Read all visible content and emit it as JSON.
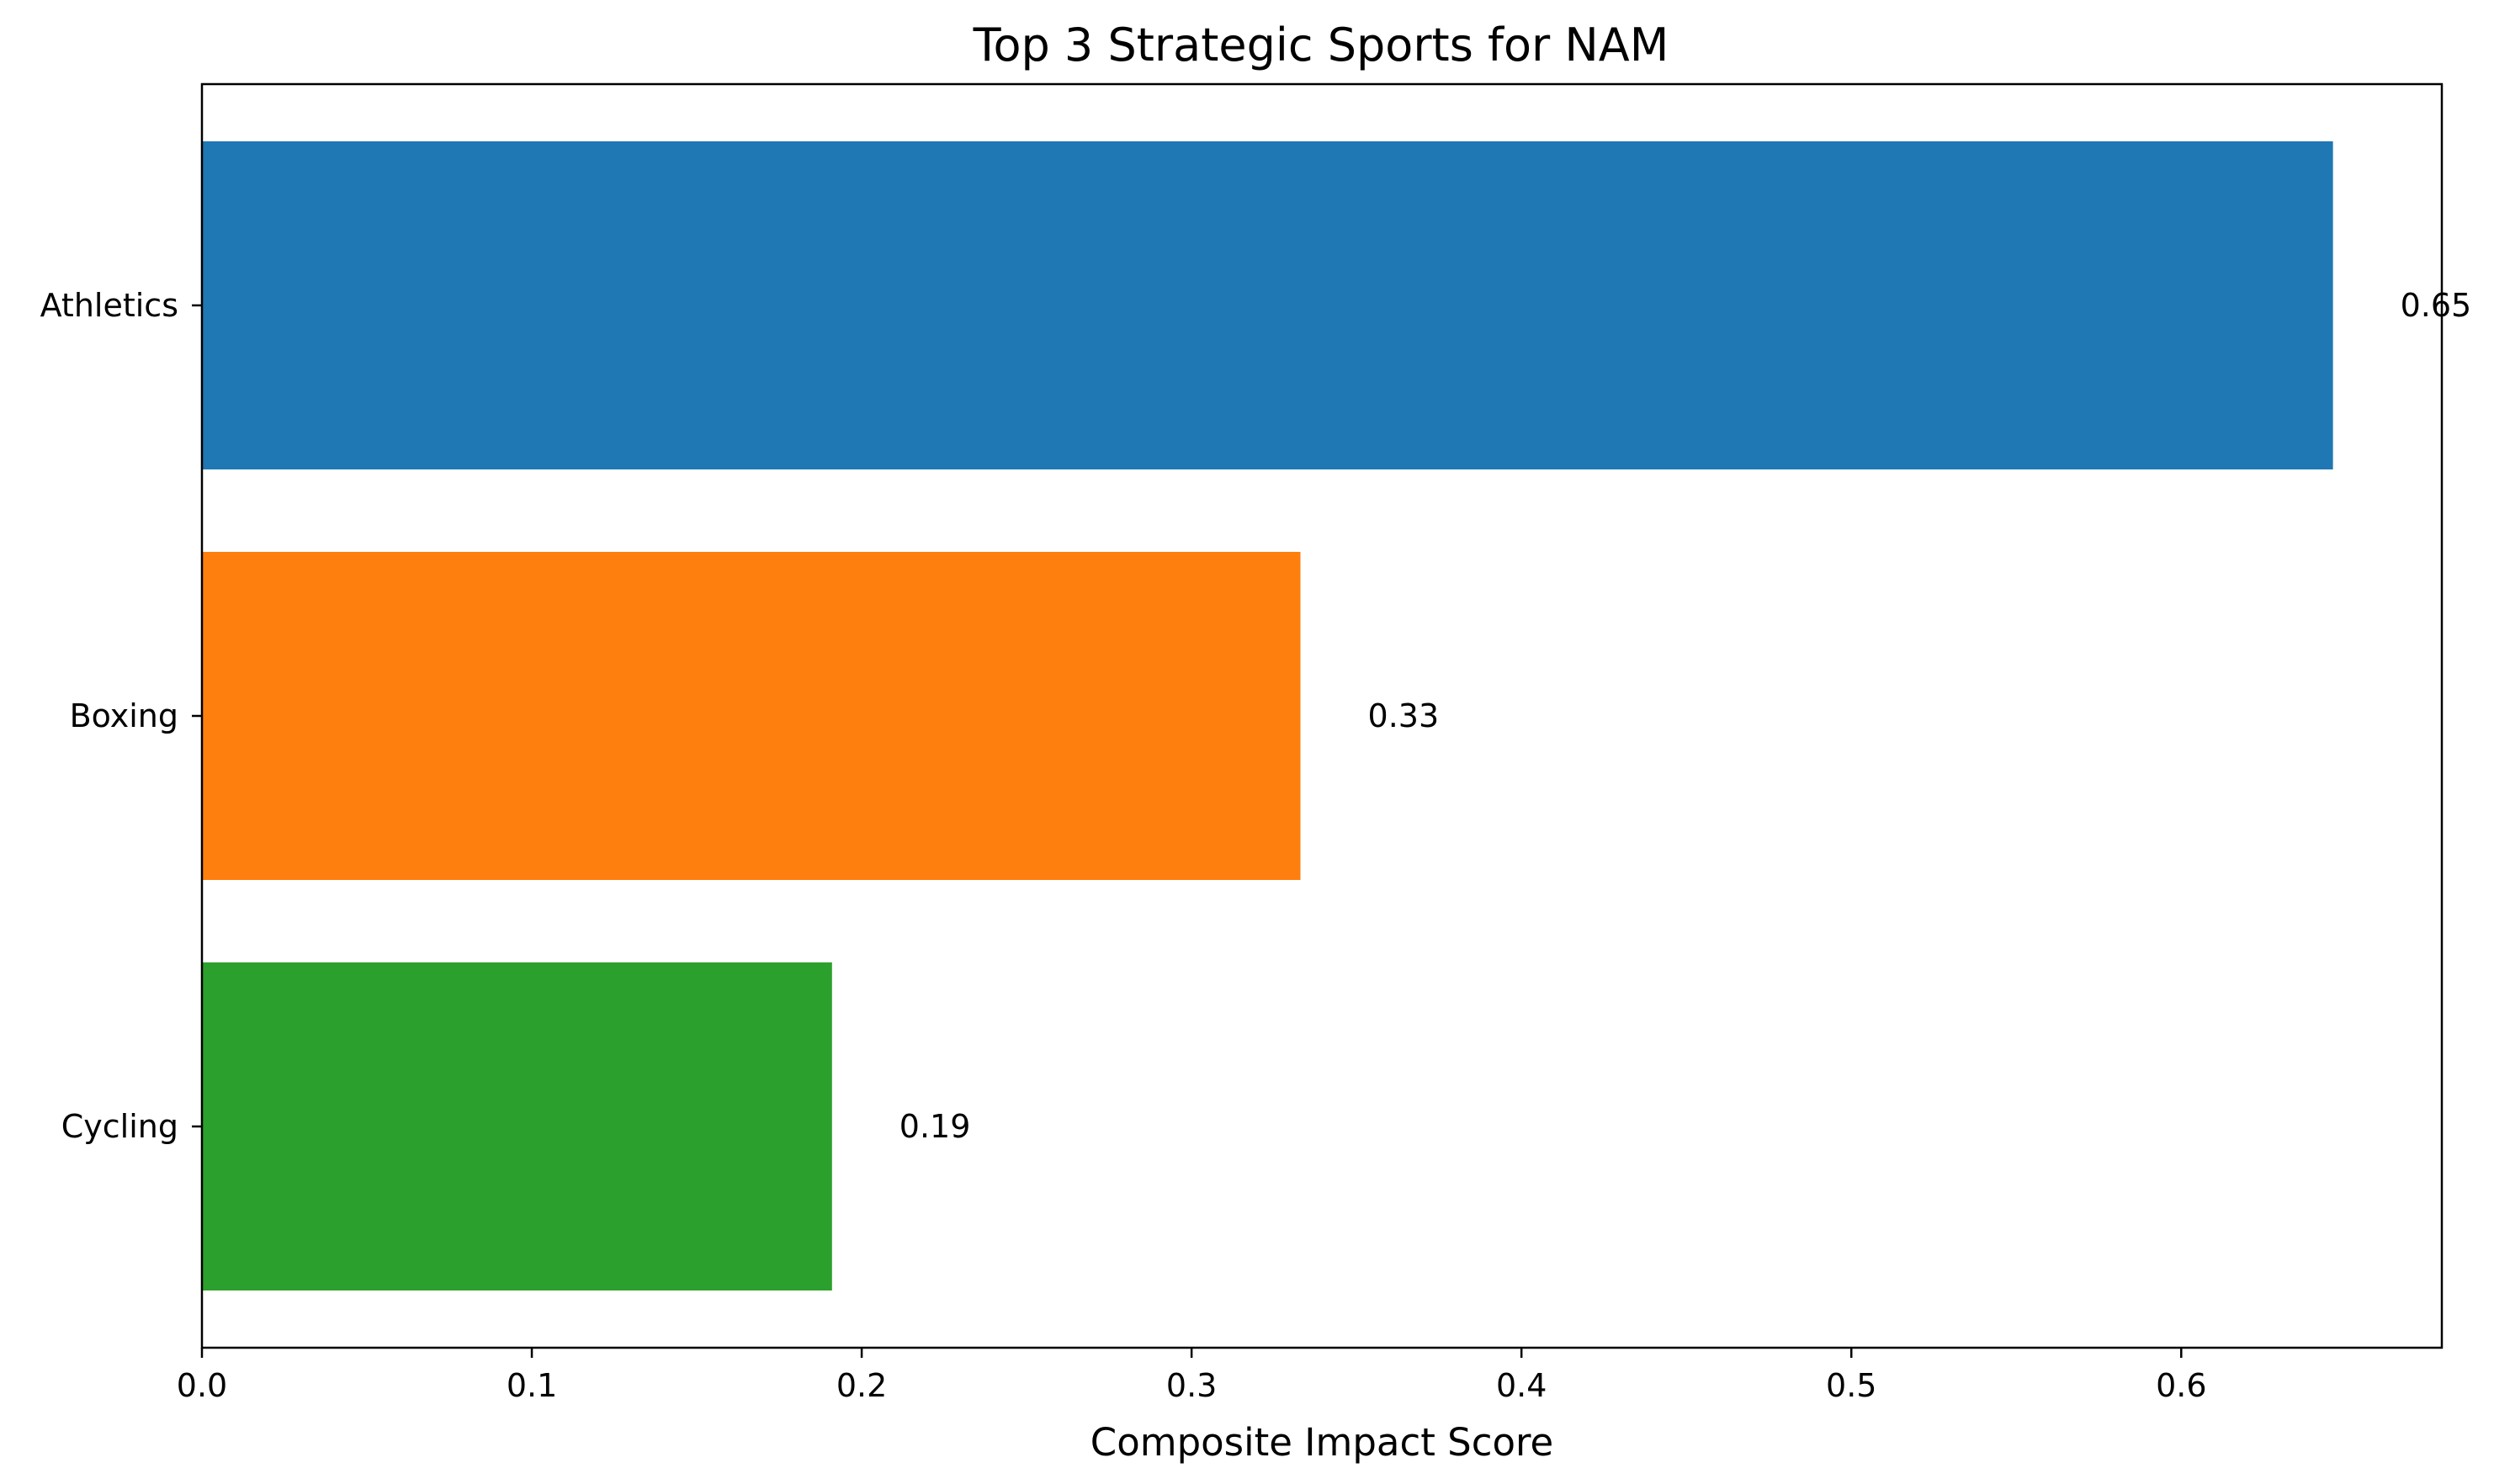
{
  "chart_data": {
    "type": "bar",
    "orientation": "horizontal",
    "title": "Top 3 Strategic Sports for NAM",
    "xlabel": "Composite Impact Score",
    "ylabel": "",
    "categories": [
      "Athletics",
      "Boxing",
      "Cycling"
    ],
    "values": [
      0.646,
      0.333,
      0.191
    ],
    "value_labels": [
      "0.65",
      "0.33",
      "0.19"
    ],
    "colors": [
      "#1f77b4",
      "#ff7f0e",
      "#2ca02c"
    ],
    "xlim": [
      0,
      0.679
    ],
    "xticks": [
      0.0,
      0.1,
      0.2,
      0.3,
      0.4,
      0.5,
      0.6
    ],
    "xtick_labels": [
      "0.0",
      "0.1",
      "0.2",
      "0.3",
      "0.4",
      "0.5",
      "0.6"
    ],
    "grid": false
  }
}
